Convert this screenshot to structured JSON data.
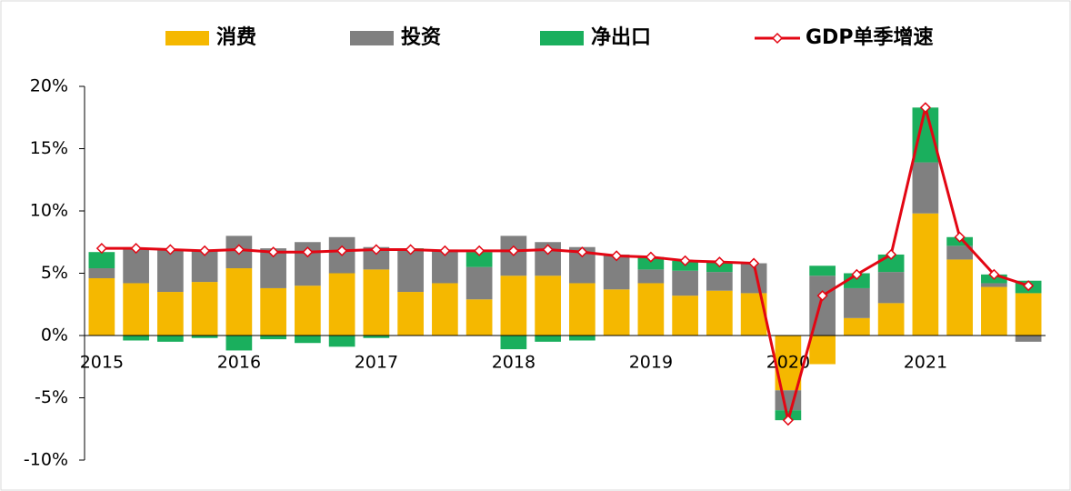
{
  "chart_data": {
    "type": "bar",
    "categories": [
      "2015",
      null,
      null,
      null,
      "2016",
      null,
      null,
      null,
      "2017",
      null,
      null,
      null,
      "2018",
      null,
      null,
      null,
      "2019",
      null,
      null,
      null,
      "2020",
      null,
      null,
      null,
      "2021",
      null,
      null,
      null
    ],
    "series": [
      {
        "name": "消费",
        "type": "bar",
        "color": "#f5b800",
        "values": [
          4.6,
          4.2,
          3.5,
          4.3,
          5.4,
          3.8,
          4.0,
          5.0,
          5.3,
          3.5,
          4.2,
          2.9,
          4.8,
          4.8,
          4.2,
          3.7,
          4.2,
          3.2,
          3.6,
          3.4,
          -4.4,
          -2.3,
          1.4,
          2.6,
          9.8,
          6.1,
          3.9,
          3.4
        ]
      },
      {
        "name": "投资",
        "type": "bar",
        "color": "#808080",
        "values": [
          0.8,
          2.8,
          3.4,
          2.5,
          2.6,
          3.2,
          3.5,
          2.9,
          1.8,
          3.4,
          2.7,
          2.6,
          3.2,
          2.7,
          2.9,
          2.8,
          1.1,
          2.0,
          1.5,
          2.4,
          -1.6,
          4.8,
          2.4,
          2.5,
          4.1,
          1.1,
          0.3,
          -0.5
        ]
      },
      {
        "name": "净出口",
        "type": "bar",
        "color": "#1aaf5d",
        "values": [
          1.3,
          -0.4,
          -0.5,
          -0.2,
          -1.2,
          -0.3,
          -0.6,
          -0.9,
          -0.2,
          0.1,
          0,
          1.2,
          -1.1,
          -0.5,
          -0.4,
          0,
          1.0,
          0.8,
          0.8,
          0,
          -0.8,
          0.8,
          1.2,
          1.4,
          4.4,
          0.7,
          0.7,
          1.0
        ]
      },
      {
        "name": "GDP单季增速",
        "type": "line",
        "color": "#e30613",
        "values": [
          7.0,
          7.0,
          6.9,
          6.8,
          6.9,
          6.7,
          6.7,
          6.8,
          6.9,
          6.9,
          6.8,
          6.8,
          6.8,
          6.9,
          6.7,
          6.4,
          6.3,
          6.0,
          5.9,
          5.8,
          -6.8,
          3.2,
          4.9,
          6.5,
          18.3,
          7.9,
          4.9,
          4.0
        ]
      }
    ],
    "ylim": [
      -10,
      20
    ],
    "yticks": [
      {
        "value": -10,
        "label": "-10%"
      },
      {
        "value": -5,
        "label": "-5%"
      },
      {
        "value": 0,
        "label": "0%"
      },
      {
        "value": 5,
        "label": "5%"
      },
      {
        "value": 10,
        "label": "10%"
      },
      {
        "value": 15,
        "label": "15%"
      },
      {
        "value": 20,
        "label": "20%"
      }
    ],
    "legend": "top",
    "grid": false
  }
}
